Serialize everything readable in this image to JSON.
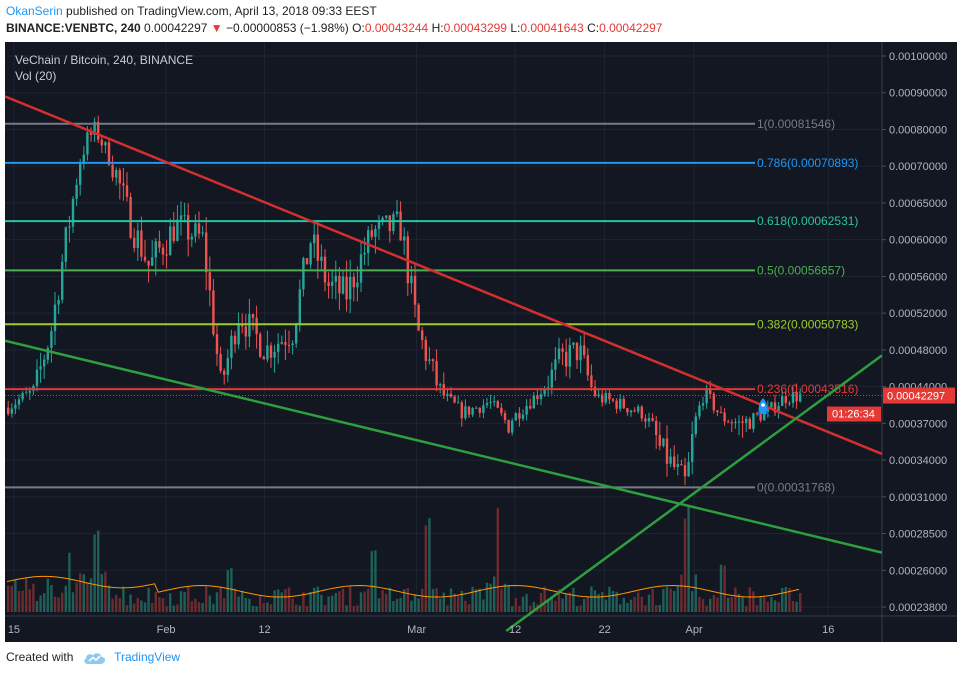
{
  "header": {
    "author": "OkanSerin",
    "published_text": "published on TradingView.com, April 13, 2018 09:33 EEST",
    "symbol": "BINANCE:VENBTC, 240",
    "last": "0.00042297",
    "change": "−0.00000853 (−1.98%)",
    "o_label": "O:",
    "o_value": "0.00043244",
    "h_label": "H:",
    "h_value": "0.00043299",
    "l_label": "L:",
    "l_value": "0.00041643",
    "c_label": "C:",
    "c_value": "0.00042297"
  },
  "colors": {
    "background": "#131722",
    "bull": "#26a69a",
    "bear": "#ef5350",
    "downtrend": "#d32f2f",
    "support": "#2e9e3e",
    "fib_1": "#787b86",
    "fib_786": "#2196f3",
    "fib_618": "#26c6a0",
    "fib_5": "#4caf50",
    "fib_382": "#9ccc2c",
    "fib_236": "#e53935",
    "fib_0": "#787b86",
    "volume_ma": "#ff9800"
  },
  "chart_data": {
    "type": "candlestick",
    "title": "VeChain / Bitcoin, 240, BINANCE",
    "subtitle": "Vol (20)",
    "y_axis_ticks": [
      "0.00100000",
      "0.00090000",
      "0.00080000",
      "0.00070000",
      "0.00065000",
      "0.00060000",
      "0.00056000",
      "0.00052000",
      "0.00048000",
      "0.00044000",
      "0.00037000",
      "0.00034000",
      "0.00031000",
      "0.00028500",
      "0.00026000",
      "0.00023800"
    ],
    "x_axis_ticks": [
      "15",
      "Feb",
      "12",
      "Mar",
      "12",
      "22",
      "Apr",
      "16"
    ],
    "x_range": [
      "2018-01-14",
      "2018-04-22"
    ],
    "fib_levels": [
      {
        "label": "1(0.00081546)",
        "ratio": 1,
        "price": 0.00081546,
        "color": "#787b86"
      },
      {
        "label": "0.786(0.00070893)",
        "ratio": 0.786,
        "price": 0.00070893,
        "color": "#2196f3"
      },
      {
        "label": "0.618(0.00062531)",
        "ratio": 0.618,
        "price": 0.00062531,
        "color": "#26c6a0"
      },
      {
        "label": "0.5(0.00056657)",
        "ratio": 0.5,
        "price": 0.00056657,
        "color": "#4caf50"
      },
      {
        "label": "0.382(0.00050783)",
        "ratio": 0.382,
        "price": 0.00050783,
        "color": "#9ccc2c"
      },
      {
        "label": "0.236(0.00043516)",
        "ratio": 0.236,
        "price": 0.00043516,
        "color": "#e53935"
      },
      {
        "label": "0(0.00031768)",
        "ratio": 0,
        "price": 0.00031768,
        "color": "#787b86"
      }
    ],
    "last_price_label": "0.00042297",
    "countdown_label": "01:26:34",
    "price_path": [
      {
        "date": "2018-01-14",
        "price": 0.0004
      },
      {
        "date": "2018-01-17",
        "price": 0.00043
      },
      {
        "date": "2018-01-19",
        "price": 0.0005
      },
      {
        "date": "2018-01-21",
        "price": 0.00062
      },
      {
        "date": "2018-01-23",
        "price": 0.00077
      },
      {
        "date": "2018-01-24",
        "price": 0.0008
      },
      {
        "date": "2018-01-26",
        "price": 0.0007
      },
      {
        "date": "2018-01-28",
        "price": 0.00062
      },
      {
        "date": "2018-01-30",
        "price": 0.00057
      },
      {
        "date": "2018-02-02",
        "price": 0.00062
      },
      {
        "date": "2018-02-05",
        "price": 0.0006
      },
      {
        "date": "2018-02-07",
        "price": 0.00044
      },
      {
        "date": "2018-02-09",
        "price": 0.00052
      },
      {
        "date": "2018-02-12",
        "price": 0.00048
      },
      {
        "date": "2018-02-15",
        "price": 0.0005
      },
      {
        "date": "2018-02-17",
        "price": 0.0006
      },
      {
        "date": "2018-02-19",
        "price": 0.00055
      },
      {
        "date": "2018-02-21",
        "price": 0.00054
      },
      {
        "date": "2018-02-24",
        "price": 0.00061
      },
      {
        "date": "2018-02-27",
        "price": 0.00062
      },
      {
        "date": "2018-03-01",
        "price": 0.0005
      },
      {
        "date": "2018-03-04",
        "price": 0.00042
      },
      {
        "date": "2018-03-06",
        "price": 0.00039
      },
      {
        "date": "2018-03-09",
        "price": 0.00041
      },
      {
        "date": "2018-03-11",
        "price": 0.00037
      },
      {
        "date": "2018-03-14",
        "price": 0.00042
      },
      {
        "date": "2018-03-17",
        "price": 0.00047
      },
      {
        "date": "2018-03-19",
        "price": 0.00048
      },
      {
        "date": "2018-03-21",
        "price": 0.00042
      },
      {
        "date": "2018-03-23",
        "price": 0.00041
      },
      {
        "date": "2018-03-26",
        "price": 0.00039
      },
      {
        "date": "2018-03-28",
        "price": 0.00035
      },
      {
        "date": "2018-03-31",
        "price": 0.00032
      },
      {
        "date": "2018-04-02",
        "price": 0.00043
      },
      {
        "date": "2018-04-04",
        "price": 0.00038
      },
      {
        "date": "2018-04-06",
        "price": 0.00037
      },
      {
        "date": "2018-04-09",
        "price": 0.00039
      },
      {
        "date": "2018-04-11",
        "price": 0.00042
      },
      {
        "date": "2018-04-13",
        "price": 0.000423
      }
    ],
    "volume_spikes": [
      {
        "date": "2018-01-21",
        "level": 0.55
      },
      {
        "date": "2018-01-24",
        "level": 0.75
      },
      {
        "date": "2018-02-08",
        "level": 0.4
      },
      {
        "date": "2018-02-24",
        "level": 0.6
      },
      {
        "date": "2018-03-02",
        "level": 0.85
      },
      {
        "date": "2018-03-10",
        "level": 1.0
      },
      {
        "date": "2018-03-31",
        "level": 0.95
      },
      {
        "date": "2018-04-04",
        "level": 0.45
      }
    ],
    "trendlines": [
      {
        "name": "downtrend",
        "color": "#d32f2f",
        "from": {
          "date": "2018-01-14",
          "price": 0.00089
        },
        "to": {
          "date": "2018-04-22",
          "price": 0.000345
        }
      },
      {
        "name": "lower-channel",
        "color": "#2e9e3e",
        "from": {
          "date": "2018-01-14",
          "price": 0.00049
        },
        "to": {
          "date": "2018-04-22",
          "price": 0.000272
        }
      },
      {
        "name": "rising-support",
        "color": "#2e9e3e",
        "from": {
          "date": "2018-03-11",
          "price": 0.000232
        },
        "to": {
          "date": "2018-04-22",
          "price": 0.000474
        }
      }
    ]
  },
  "footer": {
    "created_with": "Created with",
    "brand": "TradingView"
  }
}
